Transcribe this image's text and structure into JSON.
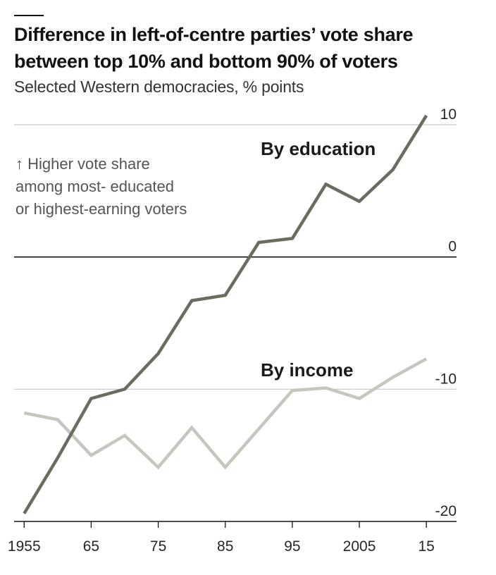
{
  "chart_data": {
    "type": "line",
    "title_lines": [
      "Difference in left-of-centre parties’ vote share",
      "between top 10% and bottom 90% of voters"
    ],
    "subtitle": "Selected Western democracies, % points",
    "x": [
      1955,
      1960,
      1965,
      1970,
      1975,
      1980,
      1985,
      1990,
      1995,
      2000,
      2005,
      2010,
      2015
    ],
    "xlim": [
      1953.5,
      2019.5
    ],
    "x_ticks": [
      1955,
      1965,
      1975,
      1985,
      1995,
      2005,
      2015
    ],
    "x_tick_labels": [
      "1955",
      "65",
      "75",
      "85",
      "95",
      "2005",
      "15"
    ],
    "ylim": [
      -20,
      10
    ],
    "y_ticks": [
      10,
      0,
      -10,
      -20
    ],
    "y_tick_labels": [
      "10",
      "0",
      "-10",
      "-20"
    ],
    "grid": true,
    "annotation_lines": [
      "↑ Higher vote share",
      "among most- educated",
      "or highest-earning voters"
    ],
    "series": [
      {
        "name": "By education",
        "color": "#6b6c60",
        "values": [
          -19.4,
          -15.2,
          -10.7,
          -10.0,
          -7.3,
          -3.3,
          -2.9,
          1.1,
          1.4,
          5.5,
          4.2,
          6.6,
          10.7
        ]
      },
      {
        "name": "By income",
        "color": "#c6c6be",
        "values": [
          -11.8,
          -12.3,
          -15.0,
          -13.5,
          -15.9,
          -12.9,
          -15.9,
          -13.0,
          -10.1,
          -9.9,
          -10.7,
          -9.1,
          -7.7
        ]
      }
    ]
  },
  "colors": {
    "axis": "#121212",
    "grid": "#c8c8c8"
  }
}
